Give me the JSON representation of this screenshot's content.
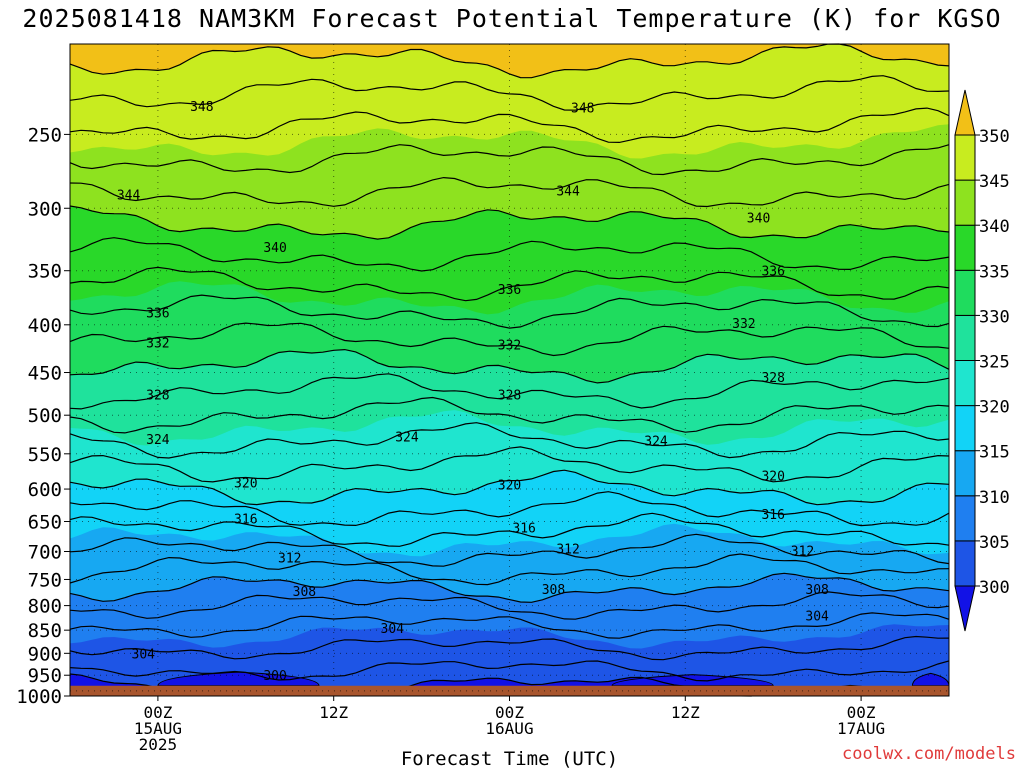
{
  "title": "2025081418 NAM3KM Forecast Potential Temperature (K) for KGSO",
  "credit": "coolwx.com/models",
  "chart_data": {
    "type": "heatmap",
    "title": "2025081418 NAM3KM Forecast Potential Temperature (K) for KGSO",
    "xlabel": "Forecast Time (UTC)",
    "ylabel": "",
    "x_unit": "hours from 2025-08-14 18Z",
    "xlim": [
      0,
      60
    ],
    "x_ticks": [
      {
        "hour": 6,
        "lines": [
          "00Z",
          "15AUG",
          "2025"
        ]
      },
      {
        "hour": 18,
        "lines": [
          "12Z"
        ]
      },
      {
        "hour": 30,
        "lines": [
          "00Z",
          "16AUG"
        ]
      },
      {
        "hour": 42,
        "lines": [
          "12Z"
        ]
      },
      {
        "hour": 54,
        "lines": [
          "00Z",
          "17AUG"
        ]
      }
    ],
    "y_unit": "hPa",
    "y_scale": "log",
    "y_reversed": true,
    "ylim": [
      1000,
      200
    ],
    "y_ticks": [
      250,
      300,
      350,
      400,
      450,
      500,
      550,
      600,
      650,
      700,
      750,
      800,
      850,
      900,
      950,
      1000
    ],
    "colorbar": {
      "levels": [
        300,
        305,
        310,
        315,
        320,
        325,
        330,
        335,
        340,
        345,
        350
      ],
      "colors": [
        "#1212e6",
        "#1e55e6",
        "#1f7ff0",
        "#17a8f2",
        "#12d3f7",
        "#1fe5cf",
        "#1fe29c",
        "#1fdc5e",
        "#29d829",
        "#8ee21f",
        "#c8ec1f",
        "#f4f41f",
        "#f2c017"
      ],
      "extend": "both"
    },
    "ground": {
      "color": "#a8552d",
      "below_hPa": 975
    },
    "profile": [
      {
        "hPa": 975,
        "theta": 300.5
      },
      {
        "hPa": 900,
        "theta": 303.5
      },
      {
        "hPa": 850,
        "theta": 305.5
      },
      {
        "hPa": 800,
        "theta": 308
      },
      {
        "hPa": 750,
        "theta": 311
      },
      {
        "hPa": 700,
        "theta": 314
      },
      {
        "hPa": 650,
        "theta": 317
      },
      {
        "hPa": 600,
        "theta": 320
      },
      {
        "hPa": 550,
        "theta": 323
      },
      {
        "hPa": 500,
        "theta": 326
      },
      {
        "hPa": 450,
        "theta": 329.5
      },
      {
        "hPa": 400,
        "theta": 333
      },
      {
        "hPa": 350,
        "theta": 337
      },
      {
        "hPa": 300,
        "theta": 341
      },
      {
        "hPa": 250,
        "theta": 345.5
      },
      {
        "hPa": 200,
        "theta": 351
      }
    ],
    "contour_interval": 2,
    "contour_range": [
      300,
      350
    ],
    "contour_labels": [
      {
        "value": 348,
        "at": [
          [
            9,
            233
          ],
          [
            35,
            234
          ]
        ]
      },
      {
        "value": 344,
        "at": [
          [
            4,
            290
          ],
          [
            34,
            287
          ]
        ]
      },
      {
        "value": 340,
        "at": [
          [
            14,
            330
          ],
          [
            47,
            307
          ]
        ]
      },
      {
        "value": 336,
        "at": [
          [
            6,
            388
          ],
          [
            30,
            366
          ],
          [
            48,
            350
          ]
        ]
      },
      {
        "value": 332,
        "at": [
          [
            6,
            418
          ],
          [
            30,
            420
          ],
          [
            46,
            398
          ]
        ]
      },
      {
        "value": 328,
        "at": [
          [
            6,
            475
          ],
          [
            30,
            475
          ],
          [
            48,
            455
          ]
        ]
      },
      {
        "value": 324,
        "at": [
          [
            6,
            530
          ],
          [
            23,
            527
          ],
          [
            40,
            532
          ]
        ]
      },
      {
        "value": 320,
        "at": [
          [
            12,
            590
          ],
          [
            30,
            593
          ],
          [
            48,
            580
          ]
        ]
      },
      {
        "value": 316,
        "at": [
          [
            12,
            645
          ],
          [
            31,
            660
          ],
          [
            48,
            638
          ]
        ]
      },
      {
        "value": 312,
        "at": [
          [
            15,
            710
          ],
          [
            34,
            695
          ],
          [
            50,
            698
          ]
        ]
      },
      {
        "value": 308,
        "at": [
          [
            16,
            772
          ],
          [
            33,
            768
          ],
          [
            51,
            768
          ]
        ]
      },
      {
        "value": 304,
        "at": [
          [
            5,
            900
          ],
          [
            22,
            845
          ],
          [
            51,
            820
          ]
        ]
      },
      {
        "value": 300,
        "at": [
          [
            14,
            950
          ]
        ]
      }
    ]
  }
}
